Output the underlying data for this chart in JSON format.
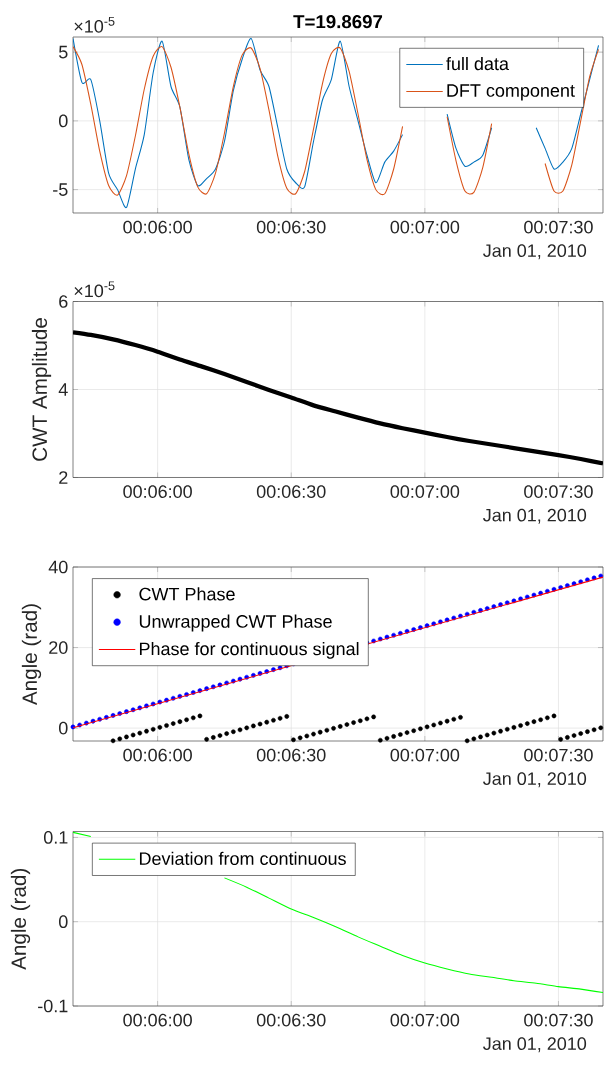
{
  "chart_data": [
    {
      "type": "line",
      "title": "T=19.8697",
      "annotations": [
        "Jan 01, 2010",
        "×10$^{-5}$"
      ],
      "grid": true,
      "legend": "top right",
      "xlim": [
        0.094722,
        0.127778
      ],
      "ylim": [
        -6.7,
        6.1
      ],
      "xticks": [
        {
          "value": 0.1,
          "label": "00:06:00"
        },
        {
          "value": 0.108333,
          "label": "00:06:30"
        },
        {
          "value": 0.116667,
          "label": "00:07:00"
        },
        {
          "value": 0.125,
          "label": "00:07:30"
        }
      ],
      "yticks": [
        -5,
        0,
        5
      ],
      "x": [
        0.094722,
        0.095278,
        0.095833,
        0.096389,
        0.096944,
        0.0975,
        0.098056,
        0.098611,
        0.099167,
        0.099722,
        0.100278,
        0.100833,
        0.101389,
        0.101944,
        0.1025,
        0.103056,
        0.103611,
        0.104167,
        0.104722,
        0.105278,
        0.105833,
        0.106389,
        0.106944,
        0.1075,
        0.108056,
        0.108611,
        0.109167,
        0.109722,
        0.110278,
        0.110833,
        0.111389,
        0.111944,
        0.1125,
        0.113056,
        0.113611,
        0.114167,
        0.114722,
        0.115278,
        0.115833,
        0.116389,
        0.116944,
        0.1175,
        0.118056,
        0.118611,
        0.119167,
        0.119722,
        0.120278,
        0.120833,
        0.121389,
        0.121944,
        0.1225,
        0.123056,
        0.123611,
        0.124167,
        0.124722,
        0.125278,
        0.125833,
        0.126389,
        0.126944,
        0.1275
      ],
      "series": [
        {
          "name": "full data",
          "color": "#0072bd",
          "values": [
            6.0,
            2.8,
            3.0,
            0.0,
            -3.8,
            -5.0,
            -6.3,
            -3.5,
            -1.0,
            3.5,
            5.8,
            2.5,
            1.0,
            -2.8,
            -4.7,
            -4.2,
            -3.5,
            -1.5,
            2.2,
            4.5,
            6.0,
            3.7,
            2.5,
            -0.5,
            -3.5,
            -4.5,
            -4.8,
            -1.5,
            1.5,
            3.0,
            5.8,
            2.5,
            0.0,
            -2.5,
            -4.5,
            -3.0,
            -2.2,
            -1.0,
            null,
            null,
            null,
            null,
            0.5,
            -2.0,
            -3.3,
            -3.0,
            -2.5,
            -0.5,
            null,
            null,
            null,
            null,
            -0.5,
            -2.0,
            -3.5,
            -3.0,
            -2.0,
            0.5,
            3.0,
            5.5
          ]
        },
        {
          "name": "DFT component",
          "color": "#d95319",
          "values": [
            5.4,
            4.1,
            1.2,
            -2.2,
            -4.7,
            -5.4,
            -4.0,
            -1.1,
            2.3,
            4.7,
            5.4,
            3.9,
            1.0,
            -2.4,
            -4.8,
            -5.3,
            -3.8,
            -0.9,
            2.5,
            4.8,
            5.3,
            3.8,
            0.8,
            -2.6,
            -4.9,
            -5.3,
            -3.7,
            -0.6,
            2.7,
            4.9,
            5.3,
            3.6,
            0.5,
            -2.8,
            -5.0,
            -5.3,
            -3.5,
            -0.4,
            null,
            null,
            null,
            null,
            0.3,
            -2.9,
            -5.1,
            -5.2,
            -3.4,
            -0.2,
            null,
            null,
            null,
            null,
            null,
            -3.1,
            -5.1,
            -5.1,
            -3.2,
            0.0,
            3.2,
            5.2
          ]
        }
      ]
    },
    {
      "type": "line",
      "ylabel": "CWT Amplitude",
      "annotations": [
        "Jan 01, 2010",
        "×10$^{-5}$"
      ],
      "grid": true,
      "xlim": [
        0.094722,
        0.127778
      ],
      "ylim": [
        2,
        6
      ],
      "xticks": [
        {
          "value": 0.1,
          "label": "00:06:00"
        },
        {
          "value": 0.108333,
          "label": "00:06:30"
        },
        {
          "value": 0.116667,
          "label": "00:07:00"
        },
        {
          "value": 0.125,
          "label": "00:07:30"
        }
      ],
      "yticks": [
        2,
        4,
        6
      ],
      "x": [
        0.094722,
        0.095833,
        0.097222,
        0.098611,
        0.1,
        0.101389,
        0.102778,
        0.104167,
        0.105556,
        0.106944,
        0.108333,
        0.109722,
        0.111111,
        0.1125,
        0.113889,
        0.115278,
        0.116667,
        0.118056,
        0.119444,
        0.120833,
        0.122222,
        0.123611,
        0.125,
        0.126389,
        0.127778
      ],
      "series": [
        {
          "color": "#000000",
          "values": [
            5.3,
            5.24,
            5.14,
            5.01,
            4.86,
            4.68,
            4.52,
            4.35,
            4.17,
            3.99,
            3.82,
            3.64,
            3.5,
            3.36,
            3.23,
            3.12,
            3.02,
            2.92,
            2.83,
            2.75,
            2.67,
            2.59,
            2.51,
            2.42,
            2.32
          ]
        }
      ]
    },
    {
      "type": "scatter",
      "ylabel": "Angle (rad)",
      "annotations": [
        "Jan 01, 2010"
      ],
      "grid": true,
      "legend": "top left",
      "xlim": [
        0.094722,
        0.127778
      ],
      "ylim": [
        -3.2,
        40
      ],
      "xticks": [
        {
          "value": 0.1,
          "label": "00:06:00"
        },
        {
          "value": 0.108333,
          "label": "00:06:30"
        },
        {
          "value": 0.116667,
          "label": "00:07:00"
        },
        {
          "value": 0.125,
          "label": "00:07:30"
        }
      ],
      "yticks": [
        0,
        20,
        40
      ],
      "x": [
        0.094722,
        0.095139,
        0.095556,
        0.095972,
        0.096389,
        0.096806,
        0.097222,
        0.097639,
        0.098056,
        0.098472,
        0.098889,
        0.099306,
        0.099722,
        0.100139,
        0.100556,
        0.100972,
        0.101389,
        0.101806,
        0.102222,
        0.102639,
        0.103056,
        0.103472,
        0.103889,
        0.104306,
        0.104722,
        0.105139,
        0.105556,
        0.105972,
        0.106389,
        0.106806,
        0.107222,
        0.107639,
        0.108056,
        0.108472,
        0.108889,
        0.109306,
        0.109722,
        0.110139,
        0.110556,
        0.110972,
        0.111389,
        0.111806,
        0.112222,
        0.112639,
        0.113056,
        0.113472,
        0.113889,
        0.114306,
        0.114722,
        0.115139,
        0.115556,
        0.115972,
        0.116389,
        0.116806,
        0.117222,
        0.117639,
        0.118056,
        0.118472,
        0.118889,
        0.119306,
        0.119722,
        0.120139,
        0.120556,
        0.120972,
        0.121389,
        0.121806,
        0.122222,
        0.122639,
        0.123056,
        0.123472,
        0.123889,
        0.124306,
        0.124722,
        0.125139,
        0.125556,
        0.125972,
        0.126389,
        0.126806,
        0.127222,
        0.127639
      ],
      "series": [
        {
          "name": "CWT Phase",
          "color": "#000000",
          "values": [
            null,
            null,
            null,
            null,
            null,
            null,
            -3.13,
            -2.66,
            -2.19,
            -1.71,
            -1.24,
            -0.76,
            -0.29,
            0.19,
            0.66,
            1.13,
            1.61,
            2.08,
            2.56,
            3.03,
            -2.78,
            -2.31,
            -1.84,
            -1.36,
            -0.89,
            -0.41,
            0.06,
            0.54,
            1.01,
            1.48,
            1.96,
            2.43,
            2.91,
            -2.9,
            -2.42,
            -1.95,
            -1.48,
            -1.0,
            -0.53,
            -0.05,
            0.42,
            0.9,
            1.37,
            1.84,
            2.32,
            2.79,
            -3.01,
            -2.54,
            -2.06,
            -1.59,
            -1.11,
            -0.64,
            -0.17,
            0.31,
            0.78,
            1.26,
            1.73,
            2.21,
            2.68,
            -3.14,
            -2.66,
            -2.19,
            -1.71,
            -1.24,
            -0.76,
            -0.29,
            0.18,
            0.66,
            1.13,
            1.61,
            2.08,
            2.56,
            3.03,
            -2.78,
            -2.3,
            -1.83,
            -1.35,
            -0.88,
            -0.4,
            0.07
          ]
        },
        {
          "name": "Unwrapped CWT Phase",
          "color": "#0000ff",
          "values": [
            0.3,
            0.77,
            1.25,
            1.72,
            2.2,
            2.67,
            3.15,
            3.62,
            4.09,
            4.57,
            5.04,
            5.52,
            5.99,
            6.47,
            6.94,
            7.41,
            7.89,
            8.36,
            8.84,
            9.31,
            9.79,
            10.26,
            10.73,
            11.21,
            11.68,
            12.16,
            12.63,
            13.11,
            13.58,
            14.05,
            14.53,
            15.0,
            15.48,
            15.95,
            null,
            null,
            null,
            null,
            null,
            null,
            null,
            null,
            null,
            null,
            21.17,
            21.64,
            22.12,
            22.59,
            23.07,
            23.54,
            24.02,
            24.49,
            24.96,
            25.44,
            25.91,
            26.39,
            26.86,
            27.34,
            27.81,
            28.28,
            28.76,
            29.23,
            29.71,
            30.18,
            30.66,
            31.13,
            31.6,
            32.08,
            32.55,
            33.03,
            33.5,
            33.98,
            34.45,
            34.92,
            35.4,
            35.87,
            36.35,
            36.82,
            37.3,
            37.77
          ]
        },
        {
          "name": "Phase for continuous signal",
          "type": "line",
          "color": "#ff0000",
          "x": [
            0.094722,
            0.127778
          ],
          "values": [
            0.1,
            37.5
          ]
        }
      ]
    },
    {
      "type": "line",
      "ylabel": "Angle (rad)",
      "annotations": [
        "Jan 01, 2010"
      ],
      "grid": true,
      "legend": "top left",
      "xlim": [
        0.094722,
        0.127778
      ],
      "ylim": [
        -0.1,
        0.107
      ],
      "xticks": [
        {
          "value": 0.1,
          "label": "00:06:00"
        },
        {
          "value": 0.108333,
          "label": "00:06:30"
        },
        {
          "value": 0.116667,
          "label": "00:07:00"
        },
        {
          "value": 0.125,
          "label": "00:07:30"
        }
      ],
      "yticks": [
        -0.1,
        0,
        0.1
      ],
      "x": [
        0.094722,
        0.095833,
        0.097222,
        0.098611,
        0.1,
        0.101389,
        0.102778,
        0.104167,
        0.105556,
        0.106944,
        0.108333,
        0.109722,
        0.111111,
        0.1125,
        0.113889,
        0.115278,
        0.116667,
        0.118056,
        0.119444,
        0.120833,
        0.122222,
        0.123611,
        0.125,
        0.126389,
        0.127778
      ],
      "series": [
        {
          "name": "Deviation from continuous",
          "color": "#00ff00",
          "values": [
            0.106,
            0.101,
            null,
            null,
            null,
            null,
            null,
            0.052,
            0.041,
            0.028,
            0.015,
            0.005,
            -0.006,
            -0.018,
            -0.029,
            -0.04,
            -0.049,
            -0.056,
            -0.062,
            -0.066,
            -0.07,
            -0.073,
            -0.077,
            -0.08,
            -0.084
          ]
        }
      ]
    }
  ]
}
